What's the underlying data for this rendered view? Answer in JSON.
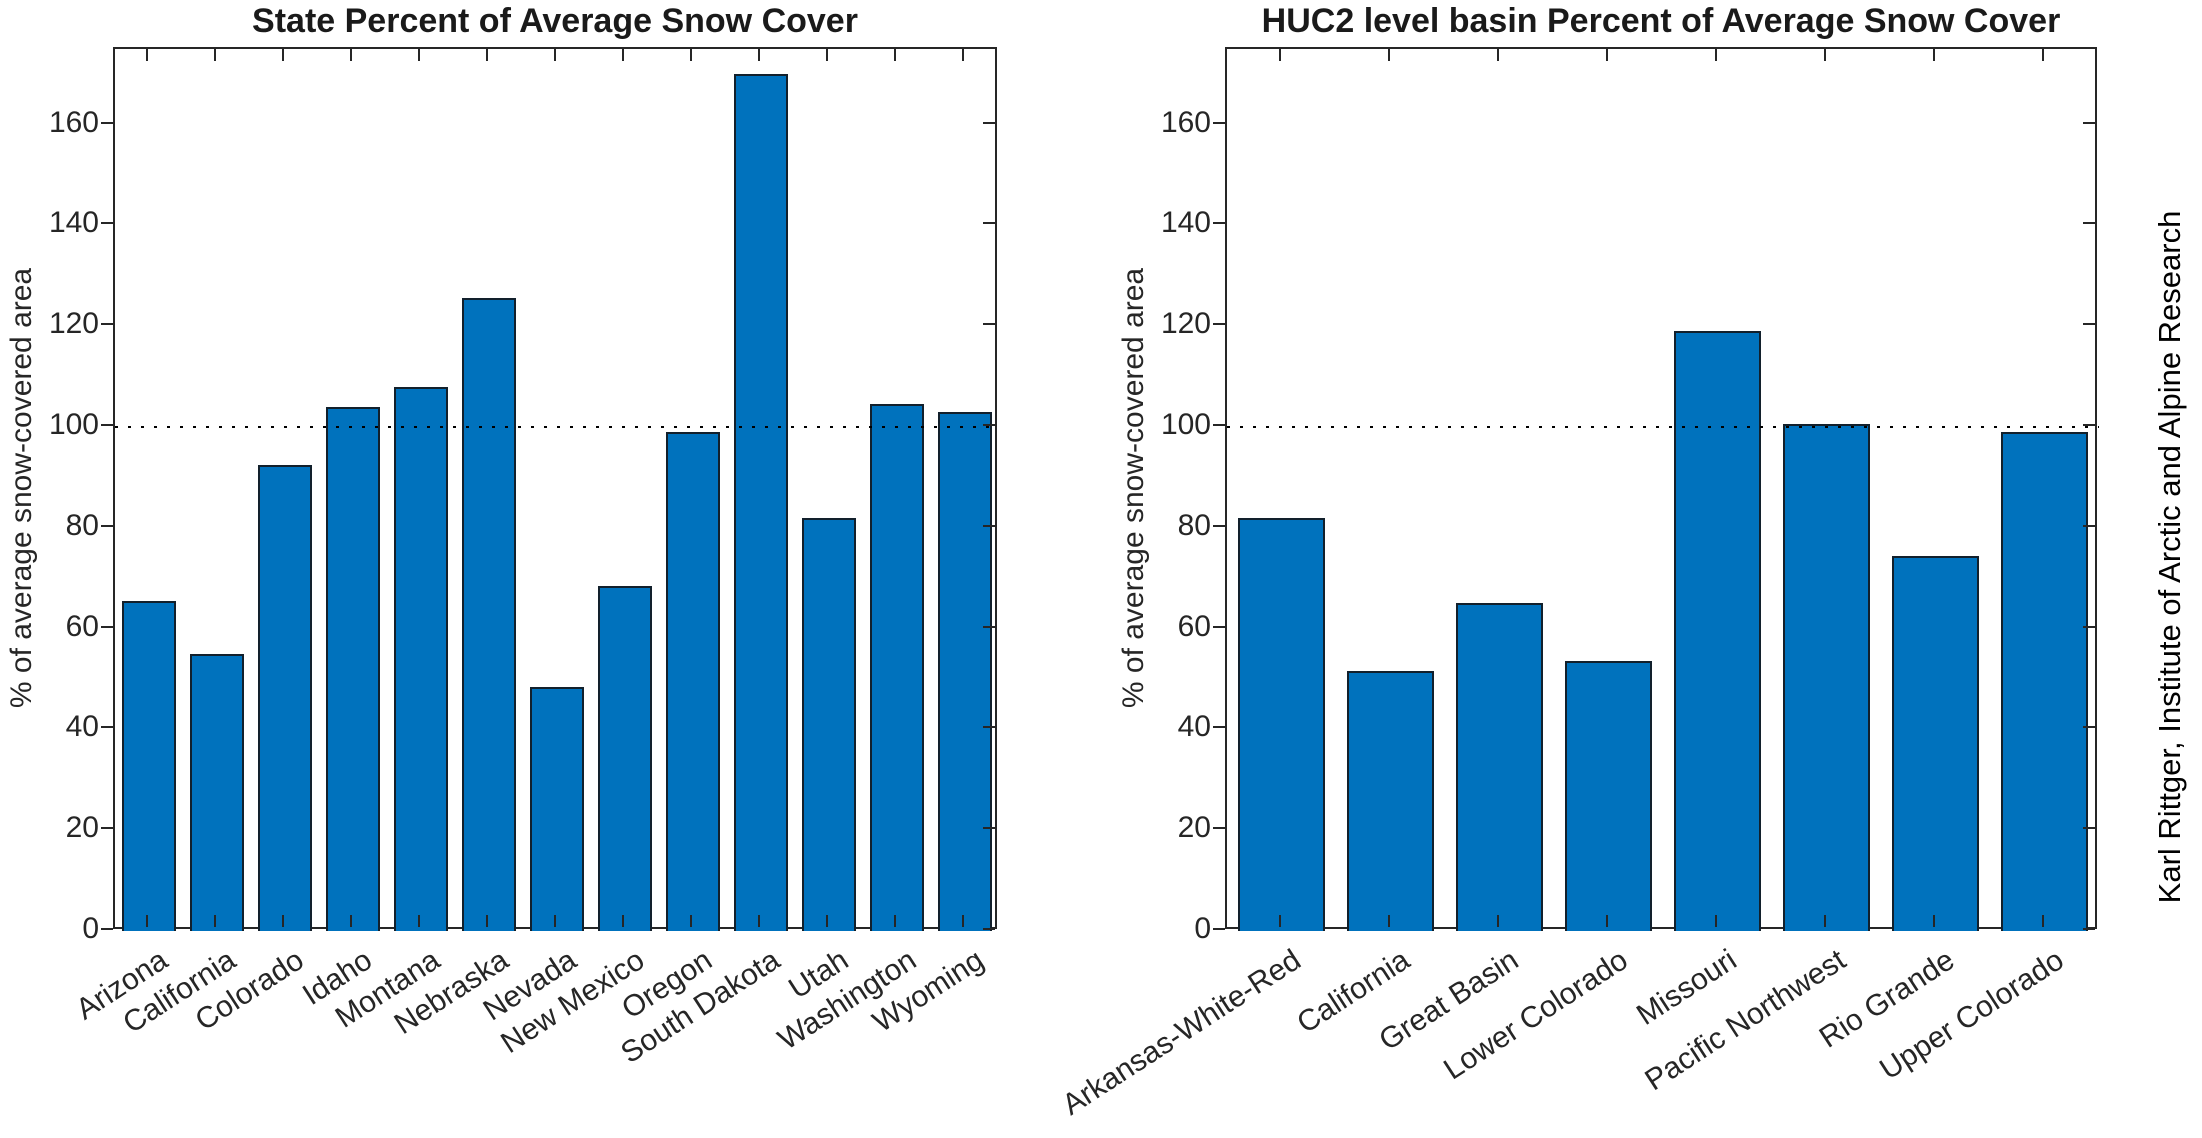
{
  "credit": "Karl Rittger, Institute of Arctic and Alpine Research",
  "palette": {
    "bar_fill": "#0072BD",
    "bar_edge": "#12202c",
    "axis_color": "#262626",
    "reference_line_color": "#000000",
    "background": "#ffffff"
  },
  "chart_data": [
    {
      "type": "bar",
      "title": "State Percent of Average Snow Cover",
      "xlabel": "",
      "ylabel": "% of average snow-covered area",
      "categories": [
        "Arizona",
        "California",
        "Colorado",
        "Idaho",
        "Montana",
        "Nebraska",
        "Nevada",
        "New Mexico",
        "Oregon",
        "South Dakota",
        "Utah",
        "Washington",
        "Wyoming"
      ],
      "values": [
        65.5,
        55,
        92.5,
        104,
        108,
        125.5,
        48.5,
        68.5,
        99,
        170,
        82,
        104.5,
        103
      ],
      "ylim": [
        0,
        175
      ],
      "yticks": [
        0,
        20,
        40,
        60,
        80,
        100,
        120,
        140,
        160
      ],
      "reference_line": 100,
      "grid": false,
      "legend": null,
      "xtick_angle_deg": -33
    },
    {
      "type": "bar",
      "title": "HUC2 level basin Percent of Average Snow Cover",
      "xlabel": "",
      "ylabel": "% of average snow-covered area",
      "categories": [
        "Arkansas-White-Red",
        "California",
        "Great Basin",
        "Lower Colorado",
        "Missouri",
        "Pacific Northwest",
        "Rio Grande",
        "Upper Colorado"
      ],
      "values": [
        82,
        51.5,
        65,
        53.5,
        119,
        100.5,
        74.5,
        99
      ],
      "ylim": [
        0,
        175
      ],
      "yticks": [
        0,
        20,
        40,
        60,
        80,
        100,
        120,
        140,
        160
      ],
      "reference_line": 100,
      "grid": false,
      "legend": null,
      "xtick_angle_deg": -33
    }
  ]
}
